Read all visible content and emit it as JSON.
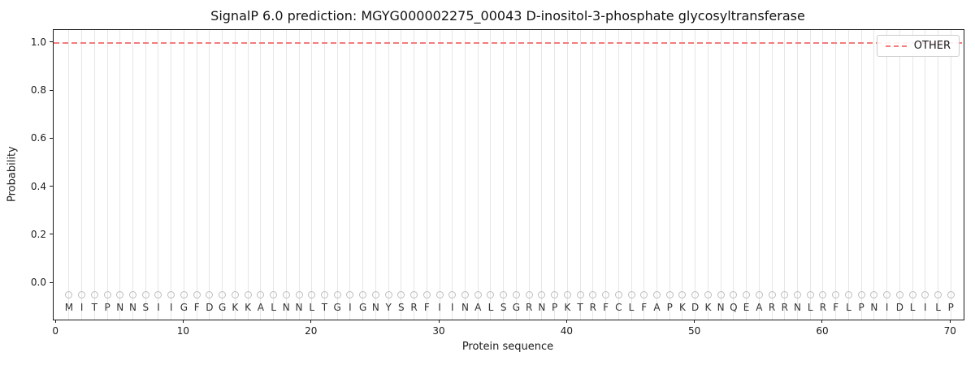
{
  "header": {
    "title": "SignalP 6.0 prediction: MGYG000002275_00043 D-inositol-3-phosphate glycosyltransferase"
  },
  "chart_data": {
    "type": "line",
    "title": "SignalP 6.0 prediction: MGYG000002275_00043 D-inositol-3-phosphate glycosyltransferase",
    "xlabel": "Protein sequence",
    "ylabel": "Probability",
    "x_ticks": [
      0,
      10,
      20,
      30,
      40,
      50,
      60,
      70
    ],
    "y_ticks": [
      0.0,
      0.2,
      0.4,
      0.6,
      0.8,
      1.0
    ],
    "xlim": [
      -0.2,
      71
    ],
    "ylim": [
      -0.15,
      1.05
    ],
    "grid": "vertical-per-residue",
    "legend_position": "upper right",
    "legend": [
      {
        "label": "OTHER",
        "color": "#f47c7c",
        "line_style": "dashed"
      }
    ],
    "sequence": "MITPNNSIIGFDGKKALNNLTGIGNYSRFIINALSGRNPKTRFCLFAPKDKNQEARRNLRFLPNIDLILP",
    "marker_y": -0.05,
    "letter_y": -0.1,
    "other_line": {
      "y": 1.0,
      "color": "#f47c7c",
      "style": "dashed"
    },
    "series": [
      {
        "name": "OTHER",
        "x_start": 1,
        "x_end": 70,
        "values": [
          1,
          1,
          1,
          1,
          1,
          1,
          1,
          1,
          1,
          1,
          1,
          1,
          1,
          1,
          1,
          1,
          1,
          1,
          1,
          1,
          1,
          1,
          1,
          1,
          1,
          1,
          1,
          1,
          1,
          1,
          1,
          1,
          1,
          1,
          1,
          1,
          1,
          1,
          1,
          1,
          1,
          1,
          1,
          1,
          1,
          1,
          1,
          1,
          1,
          1,
          1,
          1,
          1,
          1,
          1,
          1,
          1,
          1,
          1,
          1,
          1,
          1,
          1,
          1,
          1,
          1,
          1,
          1,
          1,
          1
        ]
      }
    ]
  },
  "colors": {
    "background": "#ffffff",
    "gridline": "#e6e6e6",
    "marker_stroke": "#bdbdbd",
    "spine": "#1a1a1a",
    "text": "#1a1a1a",
    "residue_text": "#333333",
    "other_line": "#f47c7c"
  }
}
